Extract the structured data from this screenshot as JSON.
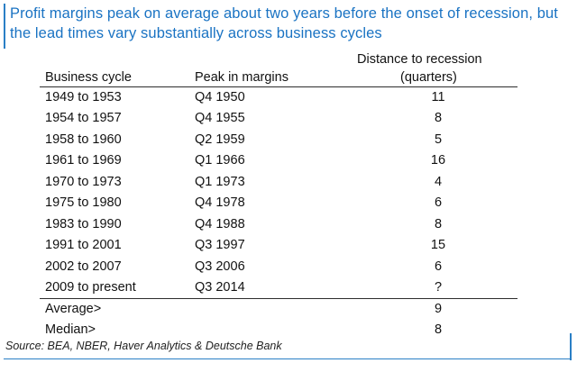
{
  "title": "Profit margins peak on average about two years before the onset of recession, but the lead times vary substantially across business cycles",
  "columns": {
    "business_cycle": "Business cycle",
    "peak": "Peak in margins",
    "distance_line1": "Distance to recession",
    "distance_line2": "(quarters)"
  },
  "rows": [
    {
      "cycle": "1949 to 1953",
      "peak": "Q4 1950",
      "distance": "11"
    },
    {
      "cycle": "1954 to 1957",
      "peak": "Q4 1955",
      "distance": "8"
    },
    {
      "cycle": "1958 to 1960",
      "peak": "Q2 1959",
      "distance": "5"
    },
    {
      "cycle": "1961 to 1969",
      "peak": "Q1 1966",
      "distance": "16"
    },
    {
      "cycle": "1970 to 1973",
      "peak": "Q1 1973",
      "distance": "4"
    },
    {
      "cycle": "1975 to 1980",
      "peak": "Q4 1978",
      "distance": "6"
    },
    {
      "cycle": "1983 to 1990",
      "peak": "Q4 1988",
      "distance": "8"
    },
    {
      "cycle": "1991 to 2001",
      "peak": "Q3 1997",
      "distance": "15"
    },
    {
      "cycle": "2002 to 2007",
      "peak": "Q3 2006",
      "distance": "6"
    },
    {
      "cycle": "2009 to present",
      "peak": "Q3 2014",
      "distance": "?"
    }
  ],
  "summary": [
    {
      "label": "Average>",
      "distance": "9"
    },
    {
      "label": "Median>",
      "distance": "8"
    }
  ],
  "source": "Source: BEA, NBER, Haver Analytics & Deutsche Bank",
  "colors": {
    "title": "#1a73c3",
    "rule": "#2a7fc6"
  }
}
